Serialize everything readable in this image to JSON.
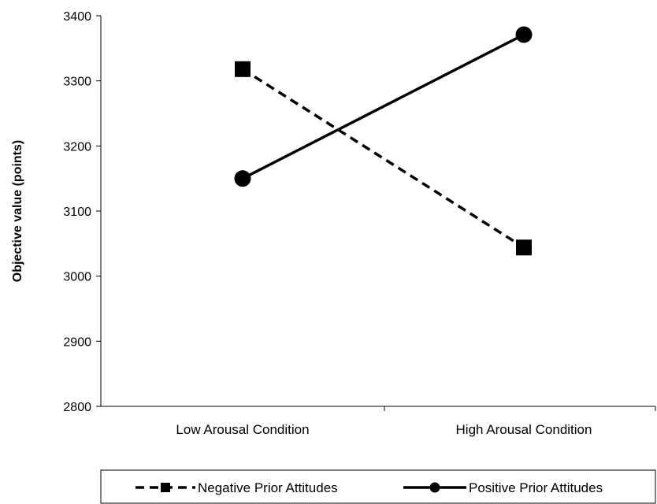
{
  "chart_data": {
    "type": "line",
    "ylabel": "Objective value (points)",
    "categories": [
      "Low Arousal Condition",
      "High Arousal Condition"
    ],
    "ylim": [
      2800,
      3400
    ],
    "yticks": [
      "2800",
      "2900",
      "3000",
      "3100",
      "3200",
      "3300",
      "3400"
    ],
    "grid": false,
    "legend_position": "bottom",
    "series": [
      {
        "name": "Negative Prior Attitudes",
        "values": [
          3318,
          3044
        ],
        "line_style": "dashed",
        "marker": "square",
        "color": "#000000"
      },
      {
        "name": "Positive Prior Attitudes",
        "values": [
          3150,
          3371
        ],
        "line_style": "solid",
        "marker": "circle",
        "color": "#000000"
      }
    ]
  }
}
